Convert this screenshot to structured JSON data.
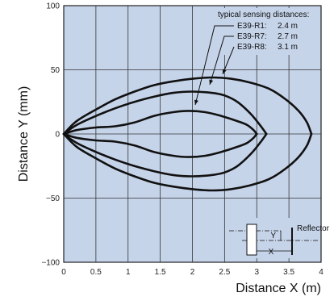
{
  "chart_data": {
    "type": "line",
    "xlabel": "Distance X (m)",
    "ylabel": "Distance Y (mm)",
    "xlim": [
      0,
      4
    ],
    "ylim": [
      -100,
      100
    ],
    "x_ticks": [
      "0",
      "0.5",
      "1",
      "1.5",
      "2",
      "2.5",
      "3",
      "3.5",
      "4"
    ],
    "y_ticks": [
      "100",
      "50",
      "0",
      "−50",
      "−100"
    ],
    "grid": true,
    "annotation": {
      "header": "typical sensing distances:",
      "entries": [
        {
          "model": "E39-R1:",
          "distance": "2.4 m"
        },
        {
          "model": "E39-R7:",
          "distance": "2.7 m"
        },
        {
          "model": "E39-R8:",
          "distance": "3.1 m"
        }
      ]
    },
    "inset": {
      "reflector_label": "Reflector",
      "x_label": "X",
      "y_label": "Y"
    },
    "series": [
      {
        "id": "E39-R1",
        "x": [
          0.0,
          0.2,
          0.5,
          0.8,
          1.1,
          1.4,
          1.7,
          1.95,
          2.2,
          2.45,
          2.7,
          2.85,
          2.95,
          3.0
        ],
        "y": [
          0,
          3,
          5,
          6,
          9,
          14,
          17,
          18,
          17,
          14,
          10,
          7,
          3,
          0
        ],
        "mirror": true
      },
      {
        "id": "E39-R7",
        "x": [
          0.0,
          0.2,
          0.5,
          0.8,
          1.1,
          1.4,
          1.7,
          2.0,
          2.3,
          2.5,
          2.7,
          2.9,
          3.05,
          3.15
        ],
        "y": [
          0,
          7,
          14,
          20,
          25,
          29,
          32,
          33,
          32,
          30,
          25,
          16,
          7,
          0
        ],
        "mirror": true
      },
      {
        "id": "E39-R8",
        "x": [
          0.0,
          0.2,
          0.5,
          0.8,
          1.1,
          1.4,
          1.7,
          2.0,
          2.3,
          2.6,
          2.9,
          3.2,
          3.45,
          3.65,
          3.78,
          3.85
        ],
        "y": [
          0,
          10,
          19,
          27,
          33,
          38,
          41,
          43,
          44,
          43,
          40,
          35,
          27,
          18,
          9,
          0
        ],
        "mirror": true
      }
    ]
  }
}
